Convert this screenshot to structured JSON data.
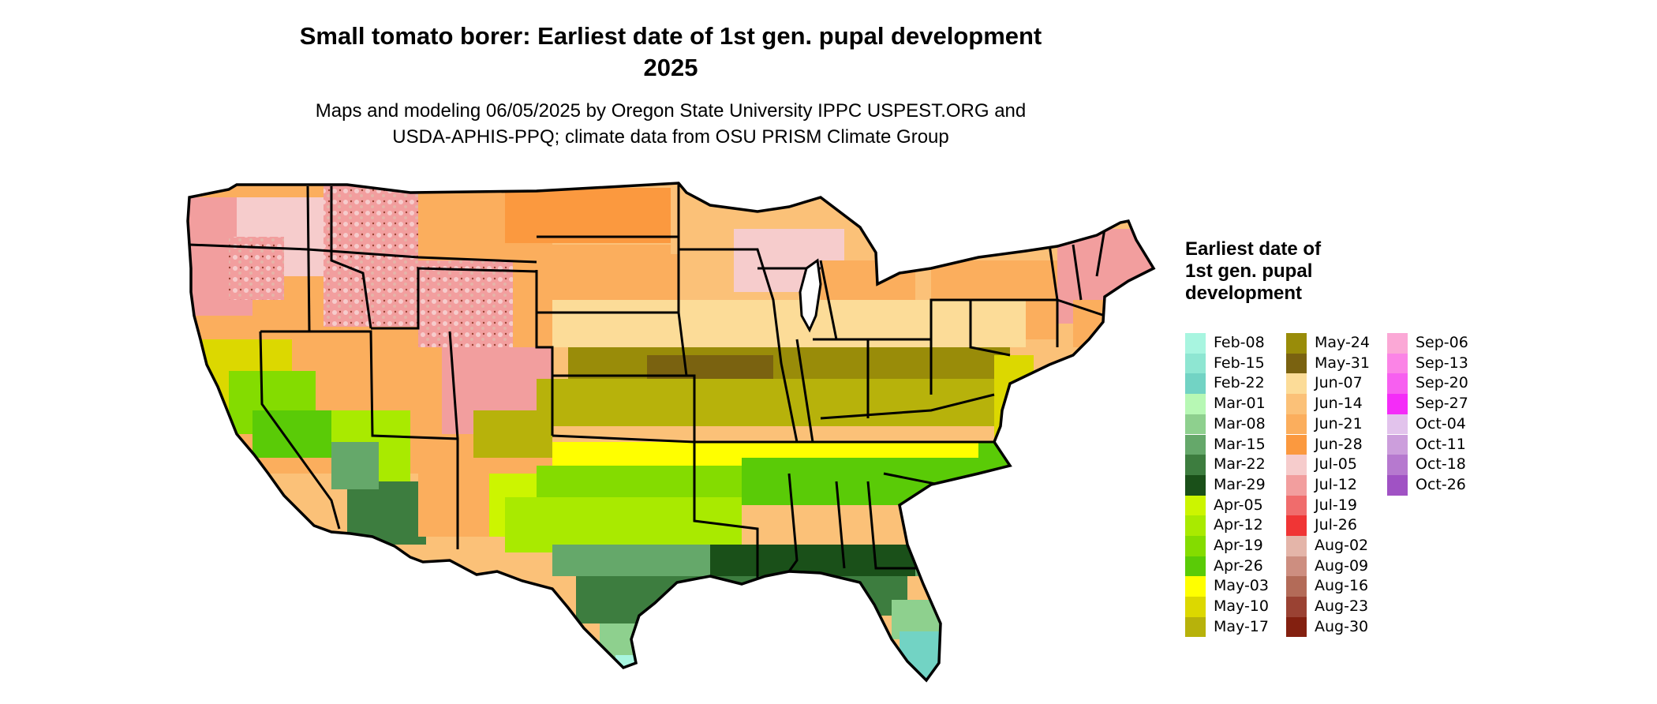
{
  "title_line1": "Small tomato borer: Earliest date of 1st gen. pupal development",
  "title_line2": "2025",
  "subtitle_line1": "Maps and modeling 06/05/2025 by Oregon State University IPPC USPEST.ORG and",
  "subtitle_line2": "USDA-APHIS-PPQ; climate data from OSU PRISM Climate Group",
  "legend": {
    "title": "Earliest date of 1st gen. pupal development",
    "items": [
      {
        "label": "Feb-08",
        "color": "#a8f5e0"
      },
      {
        "label": "Feb-15",
        "color": "#8ee6d2"
      },
      {
        "label": "Feb-22",
        "color": "#72d3c4"
      },
      {
        "label": "Mar-01",
        "color": "#b7f8b4"
      },
      {
        "label": "Mar-08",
        "color": "#8ed08e"
      },
      {
        "label": "Mar-15",
        "color": "#65a86a"
      },
      {
        "label": "Mar-22",
        "color": "#3d7d3f"
      },
      {
        "label": "Mar-29",
        "color": "#1a5019"
      },
      {
        "label": "Apr-05",
        "color": "#ccf500"
      },
      {
        "label": "Apr-12",
        "color": "#a9ea00"
      },
      {
        "label": "Apr-19",
        "color": "#84dc00"
      },
      {
        "label": "Apr-26",
        "color": "#5acb07"
      },
      {
        "label": "May-03",
        "color": "#ffff00"
      },
      {
        "label": "May-10",
        "color": "#dcd800"
      },
      {
        "label": "May-17",
        "color": "#b7b20b"
      },
      {
        "label": "May-24",
        "color": "#998c09"
      },
      {
        "label": "May-31",
        "color": "#7a6210"
      },
      {
        "label": "Jun-07",
        "color": "#fcdc98"
      },
      {
        "label": "Jun-14",
        "color": "#fbc178"
      },
      {
        "label": "Jun-21",
        "color": "#fbae5d"
      },
      {
        "label": "Jun-28",
        "color": "#fb993f"
      },
      {
        "label": "Jul-05",
        "color": "#f6cccc"
      },
      {
        "label": "Jul-12",
        "color": "#f29e9e"
      },
      {
        "label": "Jul-19",
        "color": "#f06c6c"
      },
      {
        "label": "Jul-26",
        "color": "#f03535"
      },
      {
        "label": "Aug-02",
        "color": "#e4b5a9"
      },
      {
        "label": "Aug-09",
        "color": "#cd8e80"
      },
      {
        "label": "Aug-16",
        "color": "#b36b58"
      },
      {
        "label": "Aug-23",
        "color": "#9a4233"
      },
      {
        "label": "Aug-30",
        "color": "#832010"
      },
      {
        "label": "Sep-06",
        "color": "#fba8d6"
      },
      {
        "label": "Sep-13",
        "color": "#fb84e6"
      },
      {
        "label": "Sep-20",
        "color": "#f75ff0"
      },
      {
        "label": "Sep-27",
        "color": "#f42cf8"
      },
      {
        "label": "Oct-04",
        "color": "#e2c3ec"
      },
      {
        "label": "Oct-11",
        "color": "#cc9edc"
      },
      {
        "label": "Oct-18",
        "color": "#b679cf"
      },
      {
        "label": "Oct-26",
        "color": "#a052c4"
      }
    ]
  }
}
